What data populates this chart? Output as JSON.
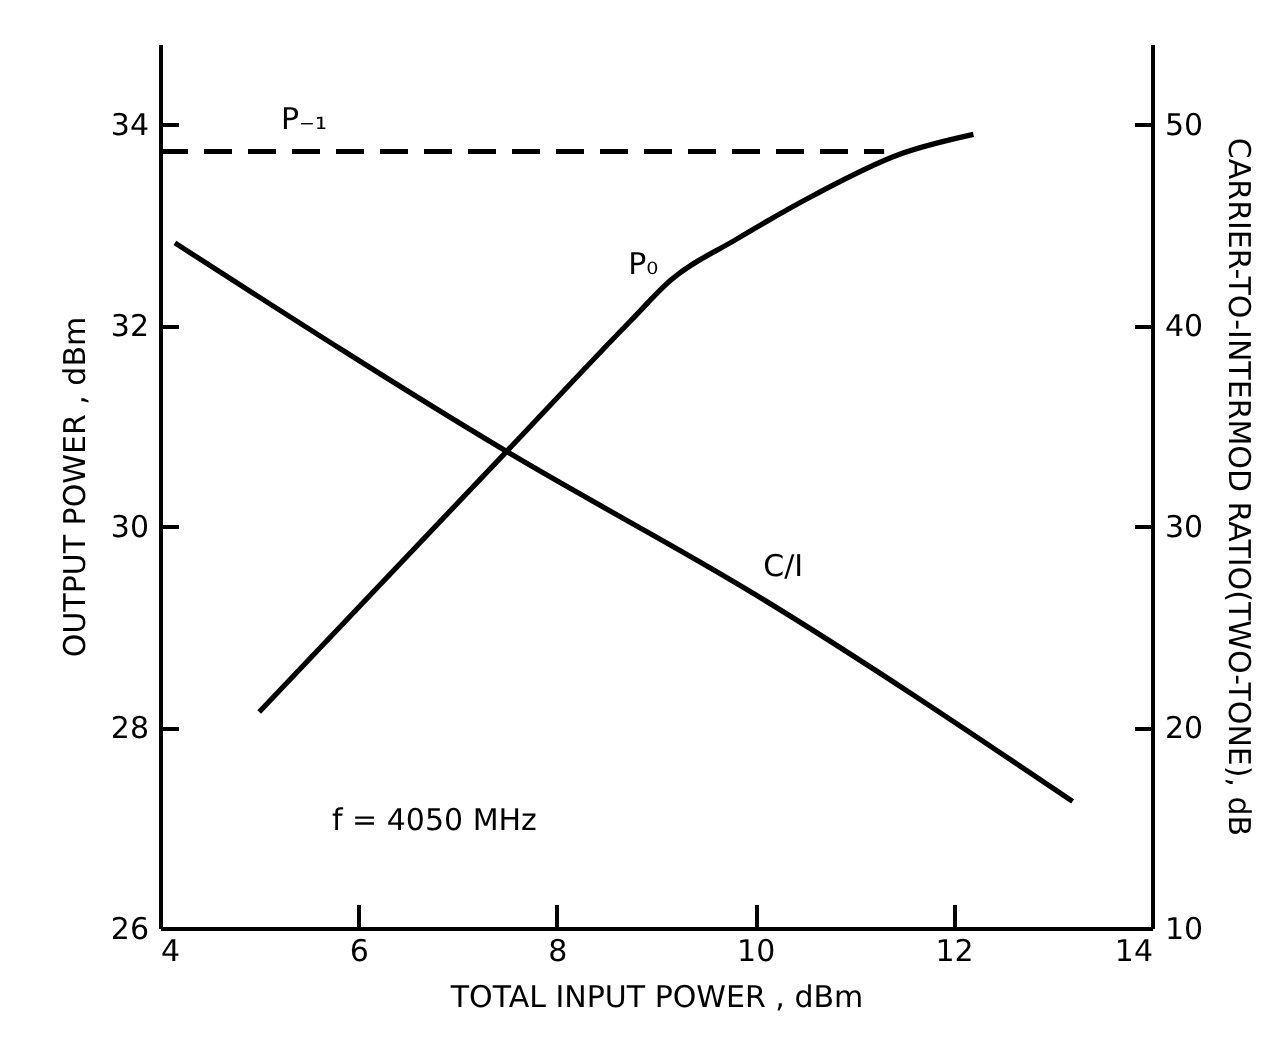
{
  "chart_data": {
    "type": "line",
    "xlabel": "TOTAL INPUT POWER , dBm",
    "ylabel": "OUTPUT POWER , dBm",
    "y2label": "CARRIER-TO-INTERMOD RATIO(TWO-TONE), dB",
    "xlim": [
      4,
      14
    ],
    "xticks": [
      4,
      6,
      8,
      10,
      12,
      14
    ],
    "ylim": [
      26,
      34.8
    ],
    "yticks": [
      26,
      28,
      30,
      32,
      34
    ],
    "y2lim": [
      10,
      54
    ],
    "y2ticks": [
      10,
      20,
      30,
      40,
      50
    ],
    "grid": false,
    "annotations": [
      "f = 4050 MHz"
    ],
    "series": [
      {
        "name": "P₋₁",
        "color": "#000000",
        "line_style": "dashed",
        "x": [
          4,
          11.3
        ],
        "values": [
          33.73,
          33.73
        ]
      },
      {
        "name": "P₀",
        "color": "#000000",
        "line_style": "solid",
        "x": [
          5.0,
          7.5,
          8.75,
          9.15,
          9.8,
          10.6,
          11.45,
          12.2
        ],
        "values": [
          28.15,
          30.75,
          32.05,
          32.45,
          32.85,
          33.3,
          33.7,
          33.9
        ]
      },
      {
        "name": "C/I",
        "color": "#000000",
        "line_style": "solid",
        "axis": "y2",
        "x": [
          4.15,
          7.5,
          10.0,
          13.2
        ],
        "values": [
          44.1,
          33.7,
          26.6,
          16.3
        ]
      }
    ]
  }
}
